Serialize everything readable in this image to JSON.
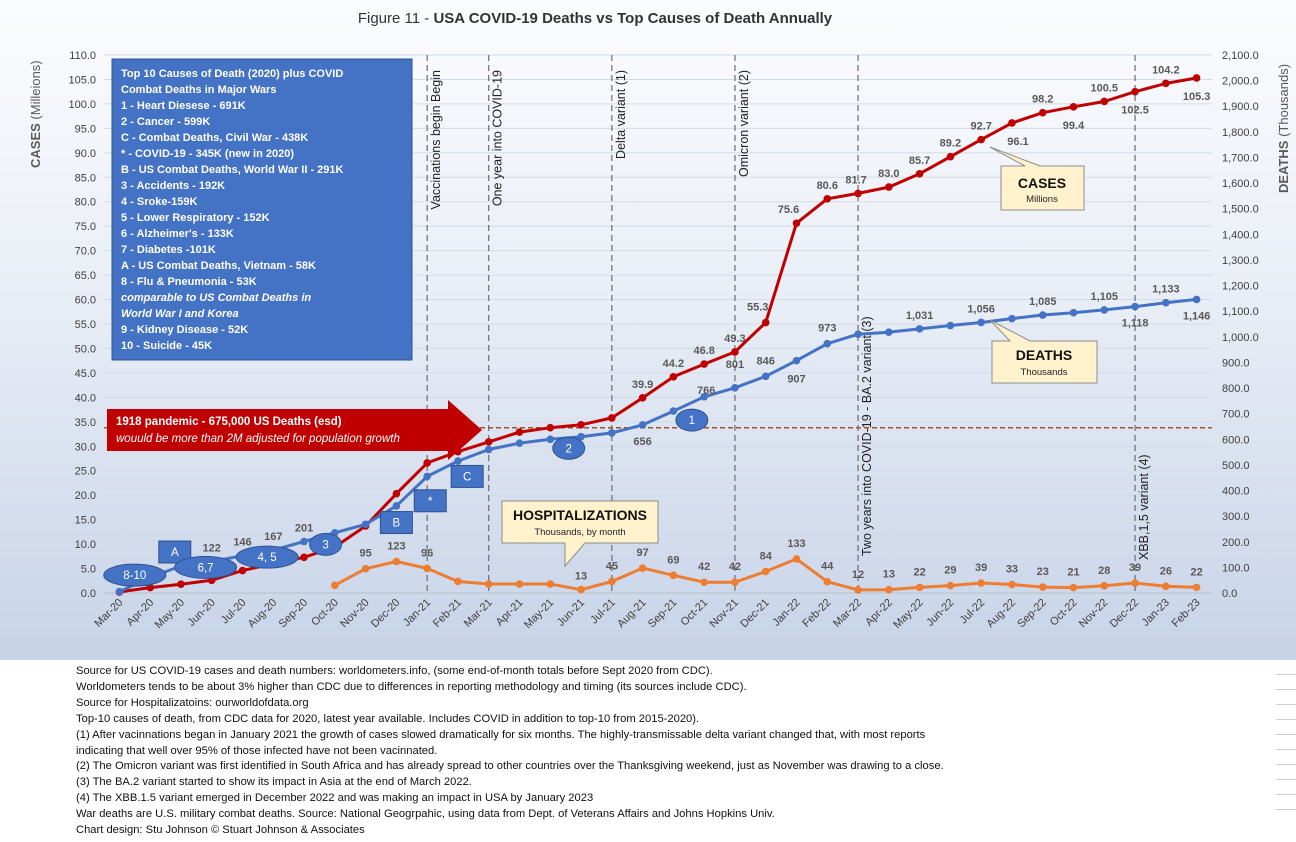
{
  "figure_label": "Figure 11 - ",
  "figure_title": "USA COVID-19 Deaths vs Top Causes of Death Annually",
  "chart_data": {
    "type": "line",
    "title": "Figure 11 - USA COVID-19 Deaths vs Top Causes of Death Annually",
    "categories": [
      "Mar-20",
      "Apr-20",
      "May-20",
      "Jun-20",
      "Jul-20",
      "Aug-20",
      "Sep-20",
      "Oct-20",
      "Nov-20",
      "Dec-20",
      "Jan-21",
      "Feb-21",
      "Mar-21",
      "Apr-21",
      "May-21",
      "Jun-21",
      "Jul-21",
      "Aug-21",
      "Sep-21",
      "Oct-21",
      "Nov-21",
      "Dec-21",
      "Jan-22",
      "Feb-22",
      "Mar-22",
      "Apr-22",
      "May-22",
      "Jun-22",
      "Jul-22",
      "Aug-22",
      "Sep-22",
      "Oct-22",
      "Nov-22",
      "Dec-22",
      "Jan-23",
      "Feb-23"
    ],
    "ylabel_left": "CASES (Milleions)",
    "ylabel_left_main": "CASES",
    "ylabel_left_unit": "(Milleions)",
    "ylabel_right": "DEATHS (Thousands)",
    "ylabel_right_main": "DEATHS",
    "ylabel_right_unit": "(Thousands)",
    "ylim_left": [
      0,
      110
    ],
    "ylim_right": [
      0,
      2100
    ],
    "yticks_left": [
      "0.0",
      "5.0",
      "10.0",
      "15.0",
      "20.0",
      "25.0",
      "30.0",
      "35.0",
      "40.0",
      "45.0",
      "50.0",
      "55.0",
      "60.0",
      "65.0",
      "70.0",
      "75.0",
      "80.0",
      "85.0",
      "90.0",
      "95.0",
      "100.0",
      "105.0",
      "110.0"
    ],
    "yticks_right": [
      "0.0",
      "100.0",
      "200.0",
      "300.0",
      "400.0",
      "500.0",
      "600.0",
      "700.0",
      "800.0",
      "900.0",
      "1,000.0",
      "1,100.0",
      "1,200.0",
      "1,300.0",
      "1,400.0",
      "1,500.0",
      "1,600.0",
      "1,700.0",
      "1,800.0",
      "1,900.0",
      "2,000.0",
      "2,100.0"
    ],
    "grid": true,
    "series": [
      {
        "name": "CASES",
        "axis": "left",
        "color": "#c00000",
        "values": [
          0.2,
          1.1,
          1.8,
          2.6,
          4.6,
          6.0,
          7.3,
          9.4,
          13.7,
          20.3,
          26.6,
          28.9,
          30.9,
          32.9,
          33.8,
          34.4,
          35.8,
          39.9,
          44.2,
          46.8,
          49.3,
          55.3,
          75.6,
          80.6,
          81.7,
          83.0,
          85.7,
          89.2,
          92.7,
          96.1,
          98.2,
          99.4,
          100.5,
          102.5,
          104.2,
          105.3
        ],
        "labels": [
          "",
          "",
          "",
          "",
          "",
          "",
          "",
          "",
          "",
          "",
          "",
          "",
          "",
          "",
          "",
          "",
          "",
          "39.9",
          "44.2",
          "46.8",
          "49.3",
          "55.3",
          "75.6",
          "80.6",
          "81.7",
          "83.0",
          "85.7",
          "89.2",
          "92.7",
          "96.1",
          "98.2",
          "99.4",
          "100.5",
          "102.5",
          "104.2",
          "105.3"
        ]
      },
      {
        "name": "DEATHS",
        "axis": "right",
        "color": "#4472c4",
        "values": [
          5,
          62,
          105,
          122,
          146,
          167,
          201,
          235,
          268,
          340,
          455,
          515,
          560,
          585,
          600,
          610,
          625,
          656,
          710,
          766,
          801,
          846,
          907,
          973,
          1010,
          1018,
          1031,
          1044,
          1056,
          1071,
          1085,
          1094,
          1105,
          1118,
          1133,
          1146
        ],
        "labels": [
          "",
          "",
          "",
          "122",
          "146",
          "167",
          "201",
          "",
          "",
          "",
          "",
          "",
          "",
          "",
          "",
          "",
          "",
          "656",
          "",
          "766",
          "801",
          "846",
          "907",
          "973",
          "",
          "",
          "1,031",
          "",
          "1,056",
          "",
          "1,085",
          "",
          "1,105",
          "1,118",
          "1,133",
          "1,146"
        ]
      },
      {
        "name": "HOSPITALIZATIONS",
        "axis": "right",
        "color": "#ed7d31",
        "values": [
          null,
          null,
          null,
          null,
          null,
          null,
          null,
          30,
          95,
          123,
          96,
          45,
          35,
          35,
          35,
          13,
          45,
          97,
          69,
          42,
          42,
          84,
          133,
          44,
          12,
          13,
          22,
          29,
          39,
          33,
          23,
          21,
          28,
          39,
          26,
          22
        ],
        "labels": [
          "",
          "",
          "",
          "",
          "",
          "",
          "",
          "",
          "95",
          "123",
          "96",
          "",
          "",
          "",
          "",
          "13",
          "45",
          "97",
          "69",
          "42",
          "42",
          "84",
          "133",
          "44",
          "12",
          "13",
          "22",
          "29",
          "39",
          "33",
          "23",
          "21",
          "28",
          "39",
          "26",
          "22"
        ]
      }
    ],
    "reference_line": {
      "axis": "right",
      "value": 645,
      "color": "#a0522d"
    },
    "event_lines": [
      {
        "position": 10.5,
        "label": "Vaccinations begin Begin"
      },
      {
        "position": 12.5,
        "label": "One year into COVID-19"
      },
      {
        "position": 16.5,
        "label": "Delta variant (1)"
      },
      {
        "position": 20.5,
        "label": "Omicron variant (2)"
      },
      {
        "position": 24.5,
        "label": "Two years into COVID-19  -  BA.2 variant (3)"
      },
      {
        "position": 33.5,
        "label": "XBB,1,5 variant (4)"
      }
    ],
    "markers": [
      {
        "text": "A",
        "shape": "square",
        "right_value": 160,
        "x": 1.8
      },
      {
        "text": "B",
        "shape": "square",
        "right_value": 275,
        "x": 9.0
      },
      {
        "text": "*",
        "shape": "square",
        "right_value": 360,
        "x": 10.1
      },
      {
        "text": "C",
        "shape": "square",
        "right_value": 455,
        "x": 11.3
      },
      {
        "text": "8-10",
        "shape": "oval",
        "right_value": 70,
        "x": 0.5
      },
      {
        "text": "6,7",
        "shape": "oval",
        "right_value": 100,
        "x": 2.8
      },
      {
        "text": "4, 5",
        "shape": "oval",
        "right_value": 140,
        "x": 4.8
      },
      {
        "text": "3",
        "shape": "oval",
        "right_value": 190,
        "x": 6.7
      },
      {
        "text": "2",
        "shape": "oval",
        "right_value": 565,
        "x": 14.6
      },
      {
        "text": "1",
        "shape": "oval",
        "right_value": 675,
        "x": 18.6
      }
    ],
    "legend_boxes": [
      {
        "title": "CASES",
        "subtitle": "Millions"
      },
      {
        "title": "DEATHS",
        "subtitle": "Thousands"
      },
      {
        "title": "HOSPITALIZATIONS",
        "subtitle": "Thousands, by month"
      }
    ]
  },
  "causes_box": {
    "title1": "Top 10 Causes of Death (2020) plus COVID",
    "title2": "Combat Deaths in Major Wars",
    "items": [
      " 1 - Heart Diesese - 691K",
      " 2 - Cancer - 599K",
      " C - Combat Deaths, Civil War - 438K",
      " * - COVID-19 - 345K  (new in 2020)",
      " B - US Combat Deaths, World War II - 291K",
      " 3 - Accidents - 192K",
      " 4 - Sroke-159K",
      " 5 - Lower Respiratory - 152K",
      " 6 - Alzheimer's - 133K",
      " 7 - Diabetes -101K",
      " A - US Combat Deaths, Vietnam - 58K",
      " 8 - Flu & Pneumonia - 53K",
      "      comparable to US Combat Deaths in",
      "      World War I and Korea",
      " 9 - Kidney Disease - 52K",
      "10 - Suicide -  45K"
    ]
  },
  "pandemic_banner": {
    "line1": "1918 pandemic - 675,000 US Deaths (esd)",
    "line2": "wouuld be more than 2M adjusted for population growth"
  },
  "notes": [
    "Source for US COVID-19 cases and death numbers: worldometers.info, (some end-of-month totals before Sept 2020 from CDC).",
    "Worldometers tends to be about 3% higher than CDC due to differences in reporting methodology and timing (its sources include CDC).",
    "Source for Hospitalizatoins: ourworldofdata.org",
    "Top-10 causes of death, from CDC data for 2020, latest year available.  Includes COVID in addition to top-10 from 2015-2020).",
    "(1) After vacinnations began in January 2021 the growth of cases slowed dramatically for six months. The highly-transmissable delta variant changed that, with most reports",
    "indicating that well over 95% of those infected have not been vacinnated.",
    "(2) The Omicron variant was first identified in South Africa and has already spread to other countries over the Thanksgiving weekend, just as November was drawing to a close.",
    "(3) The BA.2 variant started to show its impact in Asia at the end of March 2022.",
    "(4) The XBB.1.5 variant emerged in December 2022 and was making an impact in USA by January 2023",
    "War deaths are U.S. military combat deaths.  Source: National Geogrpahic, using data from Dept. of Veterans Affairs and Johns Hopkins Univ.",
    "Chart design: Stu Johnson © Stuart Johnson & Associates"
  ]
}
